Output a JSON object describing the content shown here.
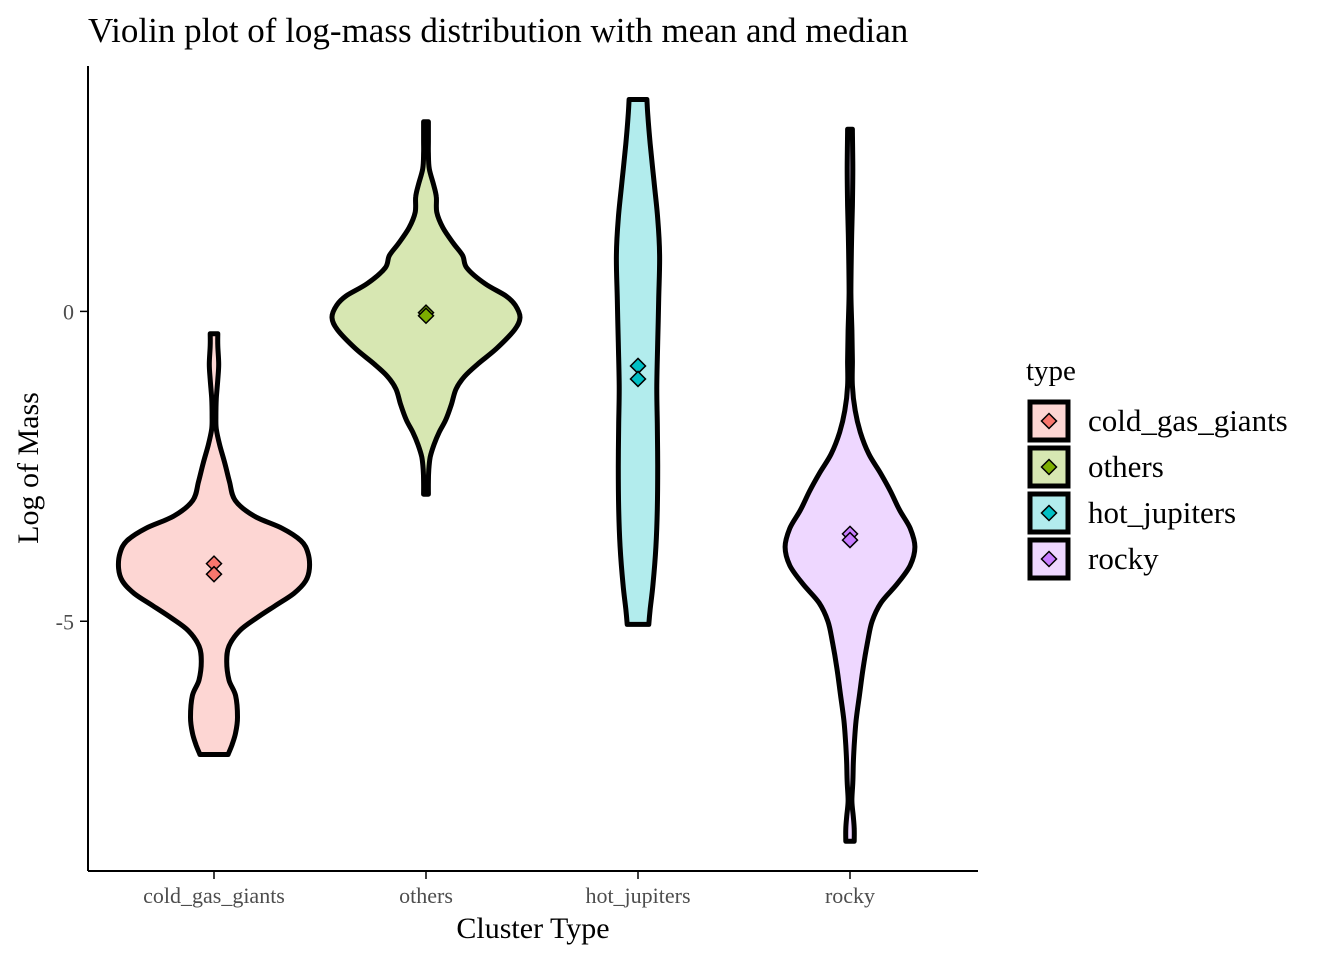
{
  "chart_data": {
    "type": "violin",
    "title": "Violin plot of log-mass distribution with mean and median",
    "xlabel": "Cluster Type",
    "ylabel": "Log of Mass",
    "categories": [
      "cold_gas_giants",
      "others",
      "hot_jupiters",
      "rocky"
    ],
    "y_ticks": [
      {
        "value": 0,
        "label": "0"
      },
      {
        "value": -5,
        "label": "-5"
      }
    ],
    "ylim": [
      -9.03,
      3.96
    ],
    "grid": false,
    "legend": {
      "title": "type",
      "placement": "right",
      "entries": [
        "cold_gas_giants",
        "others",
        "hot_jupiters",
        "rocky"
      ]
    },
    "colors": {
      "cold_gas_giants": "#F8766D",
      "others": "#7CAE00",
      "hot_jupiters": "#00BFC4",
      "rocky": "#C77CFF"
    },
    "fill_alpha": 0.3,
    "series": [
      {
        "name": "cold_gas_giants",
        "mean": -4.07,
        "median": -4.24,
        "density_profile": [
          {
            "y": -7.15,
            "w": 0.3
          },
          {
            "y": -7.0,
            "w": 0.38
          },
          {
            "y": -6.8,
            "w": 0.46
          },
          {
            "y": -6.55,
            "w": 0.5
          },
          {
            "y": -6.2,
            "w": 0.46
          },
          {
            "y": -5.95,
            "w": 0.32
          },
          {
            "y": -5.65,
            "w": 0.27
          },
          {
            "y": -5.4,
            "w": 0.32
          },
          {
            "y": -5.15,
            "w": 0.55
          },
          {
            "y": -4.95,
            "w": 0.9
          },
          {
            "y": -4.75,
            "w": 1.3
          },
          {
            "y": -4.55,
            "w": 1.7
          },
          {
            "y": -4.35,
            "w": 1.95
          },
          {
            "y": -4.15,
            "w": 2.03
          },
          {
            "y": -3.9,
            "w": 2.0
          },
          {
            "y": -3.7,
            "w": 1.85
          },
          {
            "y": -3.5,
            "w": 1.45
          },
          {
            "y": -3.3,
            "w": 0.85
          },
          {
            "y": -3.05,
            "w": 0.45
          },
          {
            "y": -2.75,
            "w": 0.33
          },
          {
            "y": -2.45,
            "w": 0.23
          },
          {
            "y": -2.15,
            "w": 0.12
          },
          {
            "y": -1.9,
            "w": 0.05
          },
          {
            "y": -1.7,
            "w": 0.04
          },
          {
            "y": -1.4,
            "w": 0.05
          },
          {
            "y": -1.1,
            "w": 0.08
          },
          {
            "y": -0.85,
            "w": 0.1
          },
          {
            "y": -0.55,
            "w": 0.08
          },
          {
            "y": -0.36,
            "w": 0.08
          }
        ]
      },
      {
        "name": "others",
        "mean": -0.02,
        "median": -0.07,
        "density_profile": [
          {
            "y": -2.95,
            "w": 0.05
          },
          {
            "y": -2.75,
            "w": 0.05
          },
          {
            "y": -2.55,
            "w": 0.06
          },
          {
            "y": -2.35,
            "w": 0.09
          },
          {
            "y": -2.15,
            "w": 0.17
          },
          {
            "y": -1.95,
            "w": 0.28
          },
          {
            "y": -1.75,
            "w": 0.42
          },
          {
            "y": -1.5,
            "w": 0.54
          },
          {
            "y": -1.25,
            "w": 0.64
          },
          {
            "y": -1.05,
            "w": 0.82
          },
          {
            "y": -0.85,
            "w": 1.1
          },
          {
            "y": -0.6,
            "w": 1.5
          },
          {
            "y": -0.3,
            "w": 1.88
          },
          {
            "y": -0.1,
            "w": 2.0
          },
          {
            "y": 0.1,
            "w": 1.9
          },
          {
            "y": 0.25,
            "w": 1.7
          },
          {
            "y": 0.45,
            "w": 1.25
          },
          {
            "y": 0.7,
            "w": 0.87
          },
          {
            "y": 0.9,
            "w": 0.78
          },
          {
            "y": 1.1,
            "w": 0.58
          },
          {
            "y": 1.35,
            "w": 0.36
          },
          {
            "y": 1.6,
            "w": 0.23
          },
          {
            "y": 1.85,
            "w": 0.22
          },
          {
            "y": 2.05,
            "w": 0.16
          },
          {
            "y": 2.3,
            "w": 0.07
          },
          {
            "y": 2.55,
            "w": 0.05
          },
          {
            "y": 2.75,
            "w": 0.05
          },
          {
            "y": 3.06,
            "w": 0.05
          }
        ]
      },
      {
        "name": "hot_jupiters",
        "mean": -0.88,
        "median": -1.09,
        "density_profile": [
          {
            "y": -5.05,
            "w": 0.23
          },
          {
            "y": -4.8,
            "w": 0.26
          },
          {
            "y": -4.4,
            "w": 0.32
          },
          {
            "y": -3.8,
            "w": 0.38
          },
          {
            "y": -3.2,
            "w": 0.41
          },
          {
            "y": -2.5,
            "w": 0.42
          },
          {
            "y": -1.8,
            "w": 0.41
          },
          {
            "y": -1.2,
            "w": 0.4
          },
          {
            "y": -0.5,
            "w": 0.42
          },
          {
            "y": 0.2,
            "w": 0.44
          },
          {
            "y": 0.9,
            "w": 0.46
          },
          {
            "y": 1.5,
            "w": 0.42
          },
          {
            "y": 2.1,
            "w": 0.34
          },
          {
            "y": 2.7,
            "w": 0.26
          },
          {
            "y": 3.15,
            "w": 0.21
          },
          {
            "y": 3.42,
            "w": 0.19
          }
        ]
      },
      {
        "name": "rocky",
        "mean": -3.59,
        "median": -3.69,
        "density_profile": [
          {
            "y": -8.55,
            "w": 0.09
          },
          {
            "y": -8.35,
            "w": 0.09
          },
          {
            "y": -8.15,
            "w": 0.07
          },
          {
            "y": -7.9,
            "w": 0.04
          },
          {
            "y": -7.6,
            "w": 0.06
          },
          {
            "y": -7.3,
            "w": 0.07
          },
          {
            "y": -7.0,
            "w": 0.09
          },
          {
            "y": -6.6,
            "w": 0.13
          },
          {
            "y": -6.2,
            "w": 0.2
          },
          {
            "y": -5.75,
            "w": 0.28
          },
          {
            "y": -5.35,
            "w": 0.37
          },
          {
            "y": -5.0,
            "w": 0.47
          },
          {
            "y": -4.7,
            "w": 0.66
          },
          {
            "y": -4.4,
            "w": 1.0
          },
          {
            "y": -4.1,
            "w": 1.28
          },
          {
            "y": -3.8,
            "w": 1.38
          },
          {
            "y": -3.5,
            "w": 1.28
          },
          {
            "y": -3.2,
            "w": 1.05
          },
          {
            "y": -2.9,
            "w": 0.86
          },
          {
            "y": -2.6,
            "w": 0.64
          },
          {
            "y": -2.3,
            "w": 0.4
          },
          {
            "y": -1.95,
            "w": 0.22
          },
          {
            "y": -1.6,
            "w": 0.11
          },
          {
            "y": -1.2,
            "w": 0.05
          },
          {
            "y": -0.8,
            "w": 0.05
          },
          {
            "y": -0.3,
            "w": 0.04
          },
          {
            "y": 0.3,
            "w": 0.02
          },
          {
            "y": 1.0,
            "w": 0.03
          },
          {
            "y": 1.7,
            "w": 0.05
          },
          {
            "y": 2.3,
            "w": 0.06
          },
          {
            "y": 2.94,
            "w": 0.05
          }
        ]
      }
    ]
  }
}
